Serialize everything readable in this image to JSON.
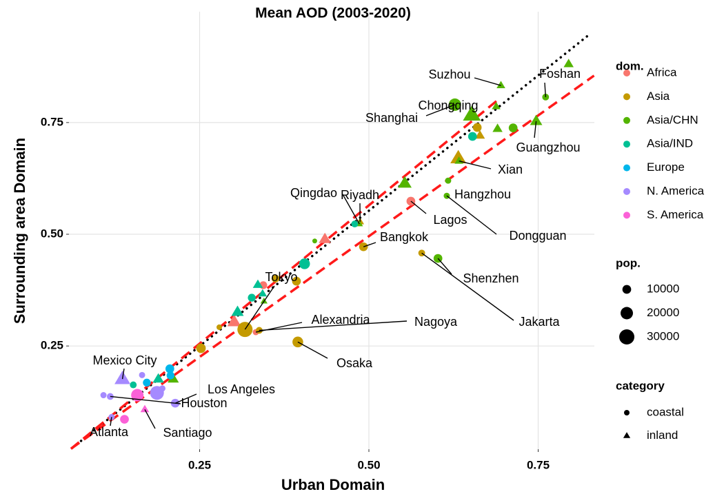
{
  "chart_data": {
    "type": "scatter",
    "title": "Mean AOD (2003-2020)",
    "x_label": "Urban Domain",
    "y_label": "Surrounding area Domain",
    "xlim": [
      0.057,
      0.833
    ],
    "ylim": [
      0.019,
      0.998
    ],
    "xticks": [
      0.25,
      {
        "value": 0.5,
        "label": "0.50"
      },
      0.75
    ],
    "yticks": [
      0.25,
      {
        "value": 0.5,
        "label": "0.50"
      },
      0.75
    ],
    "grid": true,
    "legend_title": "dom.",
    "size_legend": {
      "title": "pop.",
      "values": [
        10000,
        20000,
        30000
      ]
    },
    "category_legend": {
      "title": "category",
      "items": [
        "coastal",
        "inland"
      ]
    },
    "reference_lines": [
      {
        "x": [
          0.062,
          0.828
        ],
        "y": [
          0.022,
          0.95
        ],
        "color": "#000000",
        "style": "dotted"
      },
      {
        "x": [
          0.06,
          0.69
        ],
        "y": [
          0.02,
          0.8
        ],
        "color": "#ff1a1a",
        "style": "dashed"
      },
      {
        "x": [
          0.06,
          0.8325
        ],
        "y": [
          0.02,
          0.855
        ],
        "color": "#ff1a1a",
        "style": "dashed"
      }
    ],
    "series": [
      {
        "name": "Africa",
        "color": "#F8766D",
        "x": [
          0.562,
          0.435,
          0.344,
          0.301,
          0.333
        ],
        "y": [
          0.574,
          0.489,
          0.386,
          0.304,
          0.281
        ],
        "pop": [
          10000,
          12000,
          8000,
          15000,
          5000
        ],
        "category": [
          "coastal",
          "inland",
          "coastal",
          "inland",
          "coastal"
        ],
        "labels": [
          "Lagos",
          null,
          null,
          null,
          "Alexandria"
        ]
      },
      {
        "name": "Asia",
        "color": "#C49A00",
        "x": [
          0.66,
          0.664,
          0.632,
          0.487,
          0.492,
          0.578,
          0.317,
          0.393,
          0.338,
          0.395,
          0.252,
          0.279,
          0.362
        ],
        "y": [
          0.739,
          0.721,
          0.67,
          0.528,
          0.472,
          0.458,
          0.287,
          0.395,
          0.285,
          0.259,
          0.245,
          0.292,
          0.401
        ],
        "pop": [
          10000,
          8000,
          20000,
          5000,
          10000,
          6000,
          30000,
          10000,
          6000,
          15000,
          12000,
          4000,
          8000
        ],
        "category": [
          "coastal",
          "inland",
          "inland",
          "inland",
          "coastal",
          "coastal",
          "coastal",
          "coastal",
          "coastal",
          "coastal",
          "coastal",
          "coastal",
          "coastal"
        ],
        "labels": [
          null,
          null,
          null,
          "Riyadh",
          "Bangkok",
          "Jakarta",
          "Tokyo",
          null,
          "Nagoya",
          "Osaka",
          null,
          null,
          null
        ]
      },
      {
        "name": "Asia/CHN",
        "color": "#53B400",
        "x": [
          0.695,
          0.761,
          0.795,
          0.627,
          0.652,
          0.688,
          0.747,
          0.713,
          0.69,
          0.633,
          0.553,
          0.617,
          0.615,
          0.486,
          0.42,
          0.602,
          0.345,
          0.211
        ],
        "y": [
          0.833,
          0.807,
          0.881,
          0.79,
          0.767,
          0.786,
          0.753,
          0.738,
          0.736,
          0.664,
          0.614,
          0.62,
          0.586,
          0.523,
          0.485,
          0.446,
          0.35,
          0.176
        ],
        "pop": [
          6000,
          6000,
          8000,
          20000,
          25000,
          6000,
          12000,
          10000,
          8000,
          6000,
          15000,
          5000,
          5000,
          4000,
          3000,
          10000,
          4000,
          10000
        ],
        "category": [
          "inland",
          "coastal",
          "inland",
          "coastal",
          "inland",
          "inland",
          "inland",
          "coastal",
          "inland",
          "inland",
          "inland",
          "coastal",
          "coastal",
          "inland",
          "coastal",
          "coastal",
          "inland",
          "inland"
        ],
        "labels": [
          "Suzhou",
          "Foshan",
          null,
          "Shanghai",
          "Chongqing",
          null,
          "Guangzhou",
          null,
          null,
          "Xian",
          null,
          "Hangzhou",
          "Dongguan",
          "Qingdao",
          null,
          "Shenzhen",
          null,
          null
        ]
      },
      {
        "name": "Asia/IND",
        "color": "#00C094",
        "x": [
          0.653,
          0.479,
          0.405,
          0.336,
          0.327,
          0.343,
          0.306,
          0.189,
          0.152
        ],
        "y": [
          0.719,
          0.523,
          0.434,
          0.387,
          0.358,
          0.367,
          0.326,
          0.176,
          0.163
        ],
        "pop": [
          10000,
          6000,
          15000,
          8000,
          8000,
          6000,
          12000,
          10000,
          6000
        ],
        "category": [
          "coastal",
          "coastal",
          "coastal",
          "inland",
          "coastal",
          "inland",
          "inland",
          "inland",
          "coastal"
        ]
      },
      {
        "name": "Europe",
        "color": "#00B6EB",
        "x": [
          0.206,
          0.207,
          0.172
        ],
        "y": [
          0.199,
          0.184,
          0.168
        ],
        "pop": [
          10000,
          8000,
          8000
        ],
        "category": [
          "coastal",
          "coastal",
          "coastal"
        ]
      },
      {
        "name": "N. America",
        "color": "#A58AFF",
        "x": [
          0.136,
          0.118,
          0.187,
          0.214,
          0.12,
          0.165,
          0.195,
          0.108
        ],
        "y": [
          0.176,
          0.137,
          0.145,
          0.122,
          0.091,
          0.185,
          0.155,
          0.14
        ],
        "pop": [
          20000,
          6000,
          25000,
          10000,
          5000,
          5000,
          5000,
          5000
        ],
        "category": [
          "inland",
          "coastal",
          "coastal",
          "coastal",
          "coastal",
          "coastal",
          "coastal",
          "coastal"
        ],
        "labels": [
          "Mexico City",
          "Houston",
          null,
          "Los Angeles",
          "Atlanta",
          null,
          null,
          null
        ]
      },
      {
        "name": "S. America",
        "color": "#FB61D7",
        "x": [
          0.158,
          0.139,
          0.169
        ],
        "y": [
          0.14,
          0.086,
          0.108
        ],
        "pop": [
          20000,
          10000,
          6000
        ],
        "category": [
          "coastal",
          "coastal",
          "inland"
        ],
        "labels": [
          null,
          null,
          "Santiago"
        ]
      }
    ]
  }
}
